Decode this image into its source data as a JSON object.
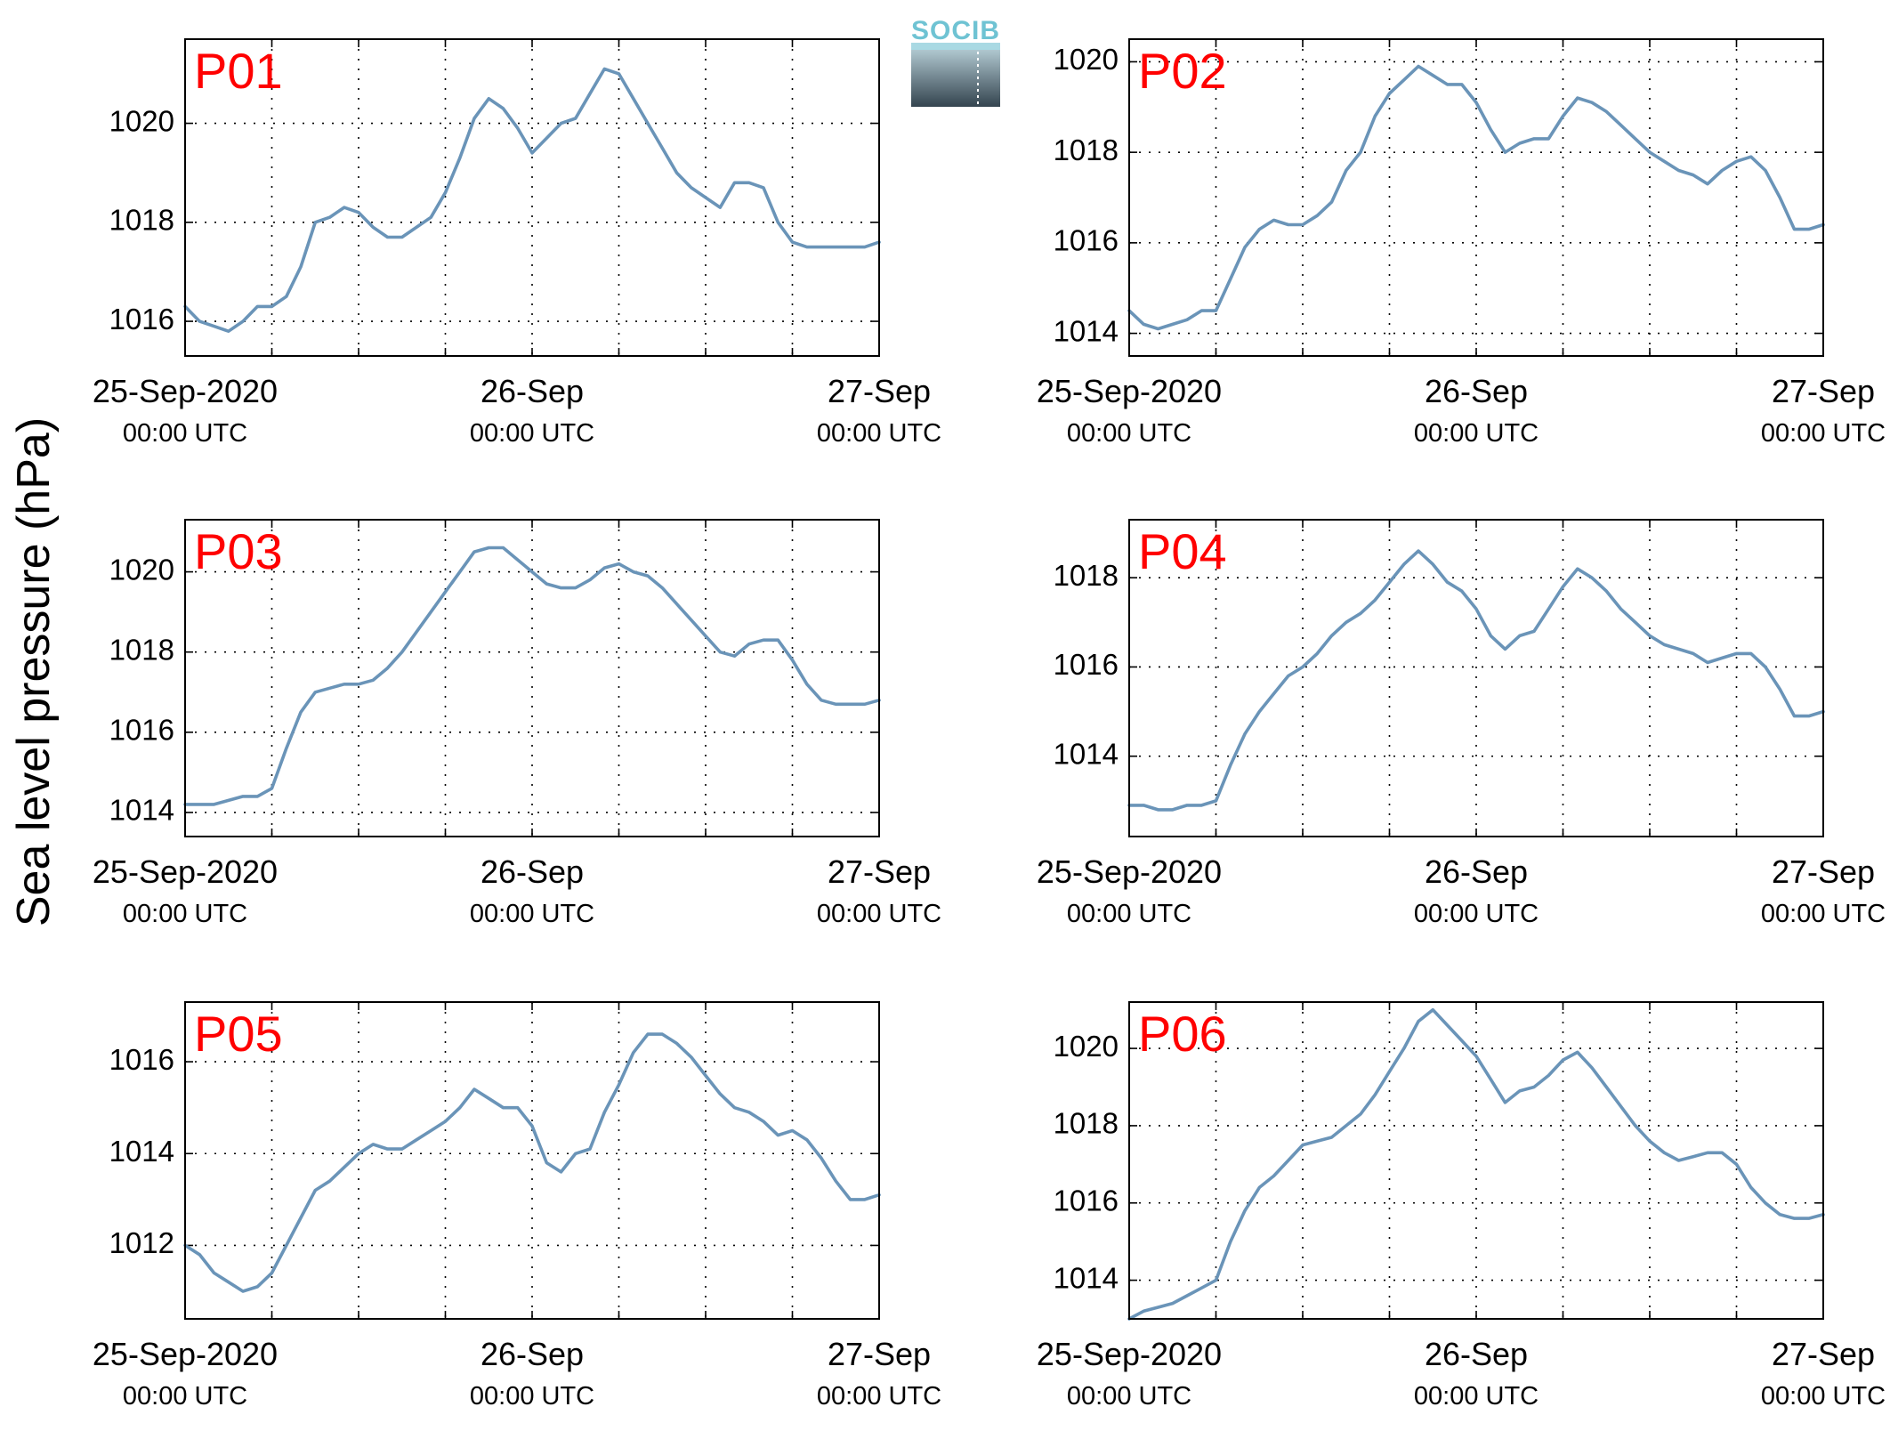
{
  "figure": {
    "ylabel": "Sea level pressure (hPa)",
    "logo_text": "SOCIB",
    "colors": {
      "series": "#6a94b8",
      "panel_label": "#ff0000",
      "logo_text": "#6fc3d3",
      "logo_dark": "#34444f"
    }
  },
  "chart_data": [
    {
      "type": "line",
      "title": "P01",
      "ylim": [
        1015.3,
        1021.7
      ],
      "yticks": [
        1016,
        1018,
        1020
      ],
      "xlim": [
        0,
        48
      ],
      "x_major_ticks": [
        0,
        24,
        48
      ],
      "x_grid": [
        6,
        12,
        18,
        24,
        30,
        36,
        42
      ],
      "x_tick_labels": [
        [
          "25-Sep-2020",
          "00:00 UTC"
        ],
        [
          "26-Sep",
          "00:00 UTC"
        ],
        [
          "27-Sep",
          "00:00 UTC"
        ]
      ],
      "grid": true,
      "series": [
        {
          "x": [
            0,
            1,
            2,
            3,
            4,
            5,
            6,
            7,
            8,
            9,
            10,
            11,
            12,
            13,
            14,
            15,
            16,
            17,
            18,
            19,
            20,
            21,
            22,
            23,
            24,
            25,
            26,
            27,
            28,
            29,
            30,
            31,
            32,
            33,
            34,
            35,
            36,
            37,
            38,
            39,
            40,
            41,
            42,
            43,
            44,
            45,
            46,
            47,
            48
          ],
          "values": [
            1016.3,
            1016.0,
            1015.9,
            1015.8,
            1016.0,
            1016.3,
            1016.3,
            1016.5,
            1017.1,
            1018.0,
            1018.1,
            1018.3,
            1018.2,
            1017.9,
            1017.7,
            1017.7,
            1017.9,
            1018.1,
            1018.6,
            1019.3,
            1020.1,
            1020.5,
            1020.3,
            1019.9,
            1019.4,
            1019.7,
            1020.0,
            1020.1,
            1020.6,
            1021.1,
            1021.0,
            1020.5,
            1020.0,
            1019.5,
            1019.0,
            1018.7,
            1018.5,
            1018.3,
            1018.8,
            1018.8,
            1018.7,
            1018.0,
            1017.6,
            1017.5,
            1017.5,
            1017.5,
            1017.5,
            1017.5,
            1017.6
          ]
        }
      ]
    },
    {
      "type": "line",
      "title": "P02",
      "ylim": [
        1013.5,
        1020.5
      ],
      "yticks": [
        1014,
        1016,
        1018,
        1020
      ],
      "xlim": [
        0,
        48
      ],
      "x_major_ticks": [
        0,
        24,
        48
      ],
      "x_grid": [
        6,
        12,
        18,
        24,
        30,
        36,
        42
      ],
      "x_tick_labels": [
        [
          "25-Sep-2020",
          "00:00 UTC"
        ],
        [
          "26-Sep",
          "00:00 UTC"
        ],
        [
          "27-Sep",
          "00:00 UTC"
        ]
      ],
      "grid": true,
      "series": [
        {
          "x": [
            0,
            1,
            2,
            3,
            4,
            5,
            6,
            7,
            8,
            9,
            10,
            11,
            12,
            13,
            14,
            15,
            16,
            17,
            18,
            19,
            20,
            21,
            22,
            23,
            24,
            25,
            26,
            27,
            28,
            29,
            30,
            31,
            32,
            33,
            34,
            35,
            36,
            37,
            38,
            39,
            40,
            41,
            42,
            43,
            44,
            45,
            46,
            47,
            48
          ],
          "values": [
            1014.5,
            1014.2,
            1014.1,
            1014.2,
            1014.3,
            1014.5,
            1014.5,
            1015.2,
            1015.9,
            1016.3,
            1016.5,
            1016.4,
            1016.4,
            1016.6,
            1016.9,
            1017.6,
            1018.0,
            1018.8,
            1019.3,
            1019.6,
            1019.9,
            1019.7,
            1019.5,
            1019.5,
            1019.1,
            1018.5,
            1018.0,
            1018.2,
            1018.3,
            1018.3,
            1018.8,
            1019.2,
            1019.1,
            1018.9,
            1018.6,
            1018.3,
            1018.0,
            1017.8,
            1017.6,
            1017.5,
            1017.3,
            1017.6,
            1017.8,
            1017.9,
            1017.6,
            1017.0,
            1016.3,
            1016.3,
            1016.4
          ]
        }
      ]
    },
    {
      "type": "line",
      "title": "P03",
      "ylim": [
        1013.4,
        1021.3
      ],
      "yticks": [
        1014,
        1016,
        1018,
        1020
      ],
      "xlim": [
        0,
        48
      ],
      "x_major_ticks": [
        0,
        24,
        48
      ],
      "x_grid": [
        6,
        12,
        18,
        24,
        30,
        36,
        42
      ],
      "x_tick_labels": [
        [
          "25-Sep-2020",
          "00:00 UTC"
        ],
        [
          "26-Sep",
          "00:00 UTC"
        ],
        [
          "27-Sep",
          "00:00 UTC"
        ]
      ],
      "grid": true,
      "series": [
        {
          "x": [
            0,
            1,
            2,
            3,
            4,
            5,
            6,
            7,
            8,
            9,
            10,
            11,
            12,
            13,
            14,
            15,
            16,
            17,
            18,
            19,
            20,
            21,
            22,
            23,
            24,
            25,
            26,
            27,
            28,
            29,
            30,
            31,
            32,
            33,
            34,
            35,
            36,
            37,
            38,
            39,
            40,
            41,
            42,
            43,
            44,
            45,
            46,
            47,
            48
          ],
          "values": [
            1014.2,
            1014.2,
            1014.2,
            1014.3,
            1014.4,
            1014.4,
            1014.6,
            1015.6,
            1016.5,
            1017.0,
            1017.1,
            1017.2,
            1017.2,
            1017.3,
            1017.6,
            1018.0,
            1018.5,
            1019.0,
            1019.5,
            1020.0,
            1020.5,
            1020.6,
            1020.6,
            1020.3,
            1020.0,
            1019.7,
            1019.6,
            1019.6,
            1019.8,
            1020.1,
            1020.2,
            1020.0,
            1019.9,
            1019.6,
            1019.2,
            1018.8,
            1018.4,
            1018.0,
            1017.9,
            1018.2,
            1018.3,
            1018.3,
            1017.8,
            1017.2,
            1016.8,
            1016.7,
            1016.7,
            1016.7,
            1016.8
          ]
        }
      ]
    },
    {
      "type": "line",
      "title": "P04",
      "ylim": [
        1012.2,
        1019.3
      ],
      "yticks": [
        1014,
        1016,
        1018
      ],
      "xlim": [
        0,
        48
      ],
      "x_major_ticks": [
        0,
        24,
        48
      ],
      "x_grid": [
        6,
        12,
        18,
        24,
        30,
        36,
        42
      ],
      "x_tick_labels": [
        [
          "25-Sep-2020",
          "00:00 UTC"
        ],
        [
          "26-Sep",
          "00:00 UTC"
        ],
        [
          "27-Sep",
          "00:00 UTC"
        ]
      ],
      "grid": true,
      "series": [
        {
          "x": [
            0,
            1,
            2,
            3,
            4,
            5,
            6,
            7,
            8,
            9,
            10,
            11,
            12,
            13,
            14,
            15,
            16,
            17,
            18,
            19,
            20,
            21,
            22,
            23,
            24,
            25,
            26,
            27,
            28,
            29,
            30,
            31,
            32,
            33,
            34,
            35,
            36,
            37,
            38,
            39,
            40,
            41,
            42,
            43,
            44,
            45,
            46,
            47,
            48
          ],
          "values": [
            1012.9,
            1012.9,
            1012.8,
            1012.8,
            1012.9,
            1012.9,
            1013.0,
            1013.8,
            1014.5,
            1015.0,
            1015.4,
            1015.8,
            1016.0,
            1016.3,
            1016.7,
            1017.0,
            1017.2,
            1017.5,
            1017.9,
            1018.3,
            1018.6,
            1018.3,
            1017.9,
            1017.7,
            1017.3,
            1016.7,
            1016.4,
            1016.7,
            1016.8,
            1017.3,
            1017.8,
            1018.2,
            1018.0,
            1017.7,
            1017.3,
            1017.0,
            1016.7,
            1016.5,
            1016.4,
            1016.3,
            1016.1,
            1016.2,
            1016.3,
            1016.3,
            1016.0,
            1015.5,
            1014.9,
            1014.9,
            1015.0
          ]
        }
      ]
    },
    {
      "type": "line",
      "title": "P05",
      "ylim": [
        1010.4,
        1017.3
      ],
      "yticks": [
        1012,
        1014,
        1016
      ],
      "xlim": [
        0,
        48
      ],
      "x_major_ticks": [
        0,
        24,
        48
      ],
      "x_grid": [
        6,
        12,
        18,
        24,
        30,
        36,
        42
      ],
      "x_tick_labels": [
        [
          "25-Sep-2020",
          "00:00 UTC"
        ],
        [
          "26-Sep",
          "00:00 UTC"
        ],
        [
          "27-Sep",
          "00:00 UTC"
        ]
      ],
      "grid": true,
      "series": [
        {
          "x": [
            0,
            1,
            2,
            3,
            4,
            5,
            6,
            7,
            8,
            9,
            10,
            11,
            12,
            13,
            14,
            15,
            16,
            17,
            18,
            19,
            20,
            21,
            22,
            23,
            24,
            25,
            26,
            27,
            28,
            29,
            30,
            31,
            32,
            33,
            34,
            35,
            36,
            37,
            38,
            39,
            40,
            41,
            42,
            43,
            44,
            45,
            46,
            47,
            48
          ],
          "values": [
            1012.0,
            1011.8,
            1011.4,
            1011.2,
            1011.0,
            1011.1,
            1011.4,
            1012.0,
            1012.6,
            1013.2,
            1013.4,
            1013.7,
            1014.0,
            1014.2,
            1014.1,
            1014.1,
            1014.3,
            1014.5,
            1014.7,
            1015.0,
            1015.4,
            1015.2,
            1015.0,
            1015.0,
            1014.6,
            1013.8,
            1013.6,
            1014.0,
            1014.1,
            1014.9,
            1015.5,
            1016.2,
            1016.6,
            1016.6,
            1016.4,
            1016.1,
            1015.7,
            1015.3,
            1015.0,
            1014.9,
            1014.7,
            1014.4,
            1014.5,
            1014.3,
            1013.9,
            1013.4,
            1013.0,
            1013.0,
            1013.1
          ]
        }
      ]
    },
    {
      "type": "line",
      "title": "P06",
      "ylim": [
        1013.0,
        1021.2
      ],
      "yticks": [
        1014,
        1016,
        1018,
        1020
      ],
      "xlim": [
        0,
        48
      ],
      "x_major_ticks": [
        0,
        24,
        48
      ],
      "x_grid": [
        6,
        12,
        18,
        24,
        30,
        36,
        42
      ],
      "x_tick_labels": [
        [
          "25-Sep-2020",
          "00:00 UTC"
        ],
        [
          "26-Sep",
          "00:00 UTC"
        ],
        [
          "27-Sep",
          "00:00 UTC"
        ]
      ],
      "grid": true,
      "series": [
        {
          "x": [
            0,
            1,
            2,
            3,
            4,
            5,
            6,
            7,
            8,
            9,
            10,
            11,
            12,
            13,
            14,
            15,
            16,
            17,
            18,
            19,
            20,
            21,
            22,
            23,
            24,
            25,
            26,
            27,
            28,
            29,
            30,
            31,
            32,
            33,
            34,
            35,
            36,
            37,
            38,
            39,
            40,
            41,
            42,
            43,
            44,
            45,
            46,
            47,
            48
          ],
          "values": [
            1013.0,
            1013.2,
            1013.3,
            1013.4,
            1013.6,
            1013.8,
            1014.0,
            1015.0,
            1015.8,
            1016.4,
            1016.7,
            1017.1,
            1017.5,
            1017.6,
            1017.7,
            1018.0,
            1018.3,
            1018.8,
            1019.4,
            1020.0,
            1020.7,
            1021.0,
            1020.6,
            1020.2,
            1019.8,
            1019.2,
            1018.6,
            1018.9,
            1019.0,
            1019.3,
            1019.7,
            1019.9,
            1019.5,
            1019.0,
            1018.5,
            1018.0,
            1017.6,
            1017.3,
            1017.1,
            1017.2,
            1017.3,
            1017.3,
            1017.0,
            1016.4,
            1016.0,
            1015.7,
            1015.6,
            1015.6,
            1015.7
          ]
        }
      ]
    }
  ]
}
